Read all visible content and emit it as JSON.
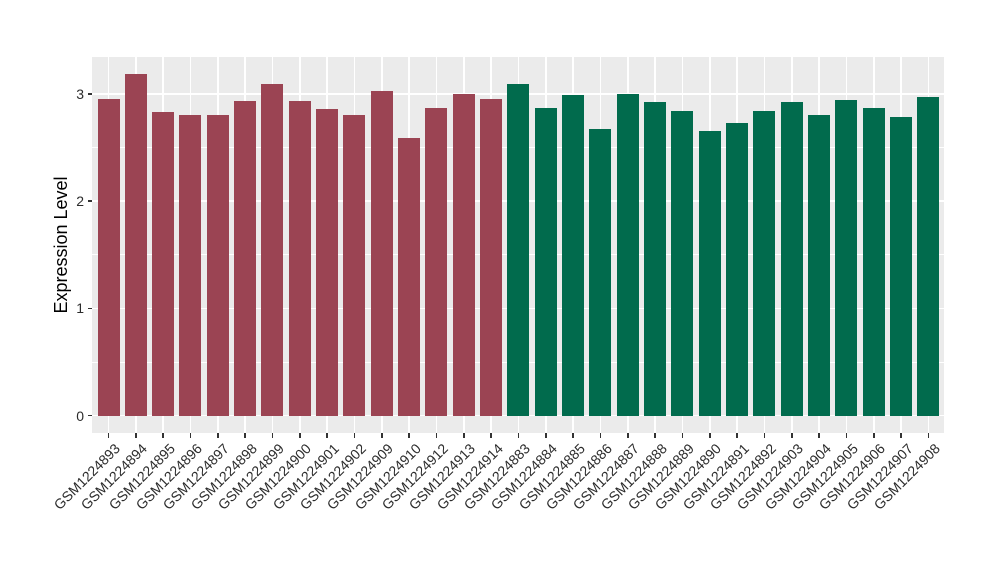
{
  "chart_data": {
    "type": "bar",
    "title": "",
    "xlabel": "",
    "ylabel": "Expression Level",
    "ylim": [
      0,
      3.34
    ],
    "yticks": [
      0,
      1,
      2,
      3
    ],
    "minor_gridlines": [
      0.5,
      1.5,
      2.5
    ],
    "grid": true,
    "legend_position": "none",
    "panel_bg": "#EBEBEB",
    "grid_color": "#FFFFFF",
    "axis_text_color": "#2b2b2b",
    "axis_title_color": "#000000",
    "tick_mark_color": "#333333",
    "bar_groups": {
      "maroon": {
        "color": "#9B4453"
      },
      "green": {
        "color": "#016B4D"
      }
    },
    "bars": [
      {
        "label": "GSM1224893",
        "value": 2.95,
        "group": "maroon"
      },
      {
        "label": "GSM1224894",
        "value": 3.19,
        "group": "maroon"
      },
      {
        "label": "GSM1224895",
        "value": 2.83,
        "group": "maroon"
      },
      {
        "label": "GSM1224896",
        "value": 2.8,
        "group": "maroon"
      },
      {
        "label": "GSM1224897",
        "value": 2.8,
        "group": "maroon"
      },
      {
        "label": "GSM1224898",
        "value": 2.93,
        "group": "maroon"
      },
      {
        "label": "GSM1224899",
        "value": 3.09,
        "group": "maroon"
      },
      {
        "label": "GSM1224900",
        "value": 2.93,
        "group": "maroon"
      },
      {
        "label": "GSM1224901",
        "value": 2.86,
        "group": "maroon"
      },
      {
        "label": "GSM1224902",
        "value": 2.8,
        "group": "maroon"
      },
      {
        "label": "GSM1224909",
        "value": 3.03,
        "group": "maroon"
      },
      {
        "label": "GSM1224910",
        "value": 2.59,
        "group": "maroon"
      },
      {
        "label": "GSM1224912",
        "value": 2.87,
        "group": "maroon"
      },
      {
        "label": "GSM1224913",
        "value": 3.0,
        "group": "maroon"
      },
      {
        "label": "GSM1224914",
        "value": 2.95,
        "group": "maroon"
      },
      {
        "label": "GSM1224883",
        "value": 3.09,
        "group": "green"
      },
      {
        "label": "GSM1224884",
        "value": 2.87,
        "group": "green"
      },
      {
        "label": "GSM1224885",
        "value": 2.99,
        "group": "green"
      },
      {
        "label": "GSM1224886",
        "value": 2.67,
        "group": "green"
      },
      {
        "label": "GSM1224887",
        "value": 3.0,
        "group": "green"
      },
      {
        "label": "GSM1224888",
        "value": 2.92,
        "group": "green"
      },
      {
        "label": "GSM1224889",
        "value": 2.84,
        "group": "green"
      },
      {
        "label": "GSM1224890",
        "value": 2.65,
        "group": "green"
      },
      {
        "label": "GSM1224891",
        "value": 2.73,
        "group": "green"
      },
      {
        "label": "GSM1224892",
        "value": 2.84,
        "group": "green"
      },
      {
        "label": "GSM1224903",
        "value": 2.92,
        "group": "green"
      },
      {
        "label": "GSM1224904",
        "value": 2.8,
        "group": "green"
      },
      {
        "label": "GSM1224905",
        "value": 2.94,
        "group": "green"
      },
      {
        "label": "GSM1224906",
        "value": 2.87,
        "group": "green"
      },
      {
        "label": "GSM1224907",
        "value": 2.78,
        "group": "green"
      },
      {
        "label": "GSM1224908",
        "value": 2.97,
        "group": "green"
      }
    ]
  }
}
